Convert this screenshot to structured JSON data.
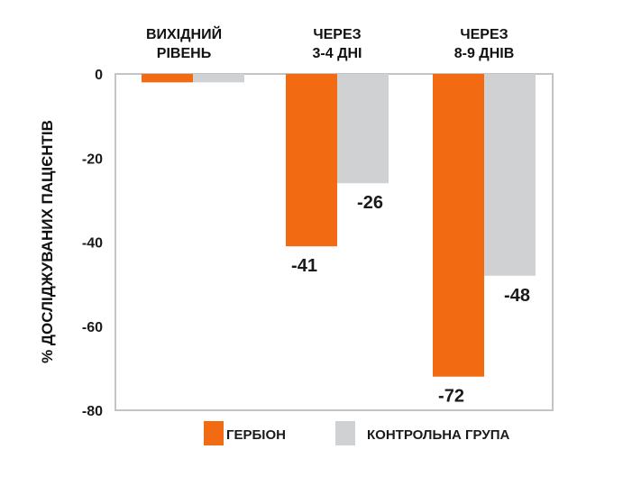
{
  "chart_data": {
    "type": "bar",
    "categories": [
      [
        "ВИХІДНИЙ",
        "РІВЕНЬ"
      ],
      [
        "ЧЕРЕЗ",
        "3-4 ДНІ"
      ],
      [
        "ЧЕРЕЗ",
        "8-9 ДНІВ"
      ]
    ],
    "series": [
      {
        "name": "ГЕРБІОН",
        "values": [
          -2,
          -41,
          -72
        ],
        "labels": [
          "",
          "-41",
          "-72"
        ],
        "color": "#F26A11"
      },
      {
        "name": "КОНТРОЛЬНА ГРУПА",
        "values": [
          -2,
          -26,
          -48
        ],
        "labels": [
          "",
          "-26",
          "-48"
        ],
        "color": "#D0D1D3"
      }
    ],
    "ylabel": "% ДОСЛІДЖУВАНИХ ПАЦІЄНТІВ",
    "ylim": [
      -80,
      0
    ],
    "yticks": [
      "0",
      "-20",
      "-40",
      "-60",
      "-80"
    ],
    "grid": false,
    "legend_position": "bottom"
  }
}
